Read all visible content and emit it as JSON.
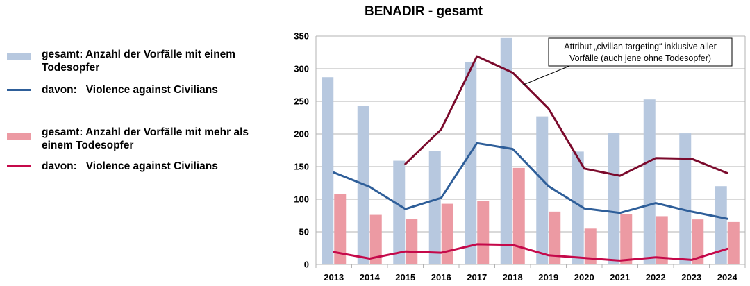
{
  "chart_data": {
    "type": "bar",
    "title": "BENADIR - gesamt",
    "categories": [
      "2013",
      "2014",
      "2015",
      "2016",
      "2017",
      "2018",
      "2019",
      "2020",
      "2021",
      "2022",
      "2023",
      "2024"
    ],
    "ylim": [
      0,
      350
    ],
    "yticks": [
      0,
      50,
      100,
      150,
      200,
      250,
      300,
      350
    ],
    "grid": true,
    "legend_position": "left",
    "series": [
      {
        "name": "gesamt: Anzahl der Vorfälle mit einem Todesopfer",
        "kind": "bar",
        "color": "#b7c8df",
        "values": [
          287,
          243,
          159,
          174,
          310,
          347,
          227,
          173,
          202,
          253,
          201,
          120
        ]
      },
      {
        "name": "gesamt: Anzahl der Vorfälle mit mehr als einem Todesopfer",
        "kind": "bar",
        "color": "#ec9aa3",
        "values": [
          108,
          76,
          70,
          93,
          97,
          148,
          81,
          55,
          77,
          74,
          69,
          65
        ]
      },
      {
        "name": "davon:   Violence against Civilians",
        "kind": "line",
        "color": "#2e5e99",
        "values": [
          141,
          119,
          85,
          102,
          186,
          177,
          120,
          86,
          79,
          94,
          81,
          70
        ]
      },
      {
        "name": "davon:   Violence against Civilians",
        "kind": "line",
        "color": "#c5094a",
        "values": [
          19,
          9,
          20,
          18,
          31,
          30,
          14,
          10,
          6,
          11,
          7,
          24
        ]
      },
      {
        "name": "",
        "kind": "line",
        "color": "#7b0a2c",
        "values": [
          null,
          null,
          154,
          207,
          319,
          294,
          239,
          147,
          136,
          163,
          162,
          140
        ]
      }
    ],
    "annotation": {
      "lines": [
        "Attribut „civilian targeting“ inklusive aller",
        "Vorfälle (auch jene ohne Todesopfer)"
      ]
    }
  },
  "legend": [
    {
      "text": "gesamt: Anzahl der Vorfälle mit einem\nTodesopfer",
      "symbol": "bar",
      "color": "#b7c8df"
    },
    {
      "text": "davon:   Violence against Civilians",
      "symbol": "line",
      "color": "#2e5e99"
    },
    {
      "text": "gesamt: Anzahl der Vorfälle mit mehr als\neinem Todesopfer",
      "symbol": "bar",
      "color": "#ec9aa3"
    },
    {
      "text": "davon:   Violence against Civilians",
      "symbol": "line",
      "color": "#c5094a"
    }
  ]
}
